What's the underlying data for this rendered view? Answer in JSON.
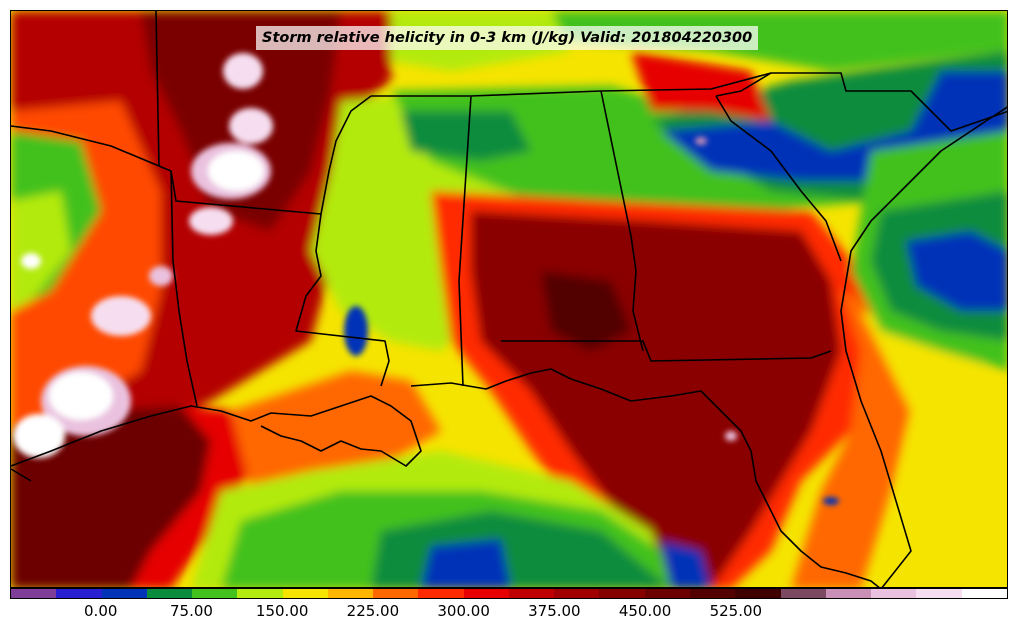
{
  "title": "Storm relative helicity in 0-3 km (J/kg) Valid: 201804220300",
  "colorbar": {
    "colors": [
      "#7f3f98",
      "#2a1fd0",
      "#0033b8",
      "#0a8c3c",
      "#43c11c",
      "#b3ea10",
      "#f5e400",
      "#ffb600",
      "#ff6800",
      "#ff2a00",
      "#e60000",
      "#c00000",
      "#a10000",
      "#860000",
      "#6c0000",
      "#520000",
      "#3e0000",
      "#7b4a62",
      "#c98fb6",
      "#eac2df",
      "#f6def0",
      "#ffffff"
    ],
    "ticks": [
      "0.00",
      "75.00",
      "150.00",
      "225.00",
      "300.00",
      "375.00",
      "450.00",
      "525.00"
    ]
  },
  "colors": {
    "background": "#ffffff",
    "border": "#000000"
  }
}
